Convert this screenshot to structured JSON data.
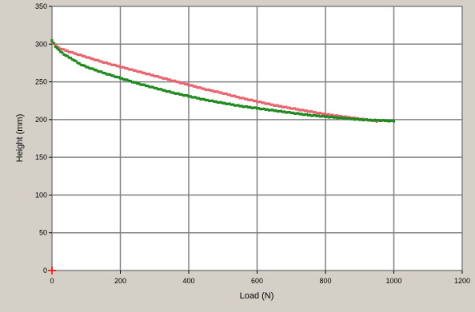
{
  "chart_data": {
    "type": "scatter",
    "xlabel": "Load (N)",
    "ylabel": "Height (mm)",
    "xlim": [
      0,
      1200
    ],
    "ylim": [
      0,
      350
    ],
    "x_ticks": [
      0,
      200,
      400,
      600,
      800,
      1000,
      1200
    ],
    "y_ticks": [
      0,
      50,
      100,
      150,
      200,
      250,
      300,
      350
    ],
    "grid": true,
    "legend": "none",
    "series": [
      {
        "color": "#e8646e",
        "points": [
          [
            0,
            303
          ],
          [
            20,
            295
          ],
          [
            50,
            290
          ],
          [
            100,
            283
          ],
          [
            150,
            276
          ],
          [
            200,
            270
          ],
          [
            250,
            264
          ],
          [
            300,
            258
          ],
          [
            350,
            252
          ],
          [
            400,
            246
          ],
          [
            450,
            240
          ],
          [
            500,
            235
          ],
          [
            550,
            229
          ],
          [
            600,
            224
          ],
          [
            650,
            219
          ],
          [
            700,
            215
          ],
          [
            750,
            211
          ],
          [
            800,
            207
          ],
          [
            850,
            204
          ],
          [
            900,
            201
          ],
          [
            950,
            198
          ]
        ]
      },
      {
        "color": "#1e8a1e",
        "points": [
          [
            0,
            305
          ],
          [
            10,
            297
          ],
          [
            20,
            292
          ],
          [
            40,
            285
          ],
          [
            60,
            280
          ],
          [
            80,
            274
          ],
          [
            100,
            270
          ],
          [
            150,
            262
          ],
          [
            200,
            255
          ],
          [
            250,
            248
          ],
          [
            300,
            242
          ],
          [
            350,
            236
          ],
          [
            400,
            231
          ],
          [
            450,
            226
          ],
          [
            500,
            222
          ],
          [
            550,
            218
          ],
          [
            600,
            215
          ],
          [
            650,
            212
          ],
          [
            700,
            209
          ],
          [
            750,
            206
          ],
          [
            800,
            204
          ],
          [
            850,
            202
          ],
          [
            900,
            200
          ],
          [
            950,
            199
          ],
          [
            1000,
            198
          ]
        ]
      }
    ],
    "origin_marker_color": "#ff0000"
  }
}
